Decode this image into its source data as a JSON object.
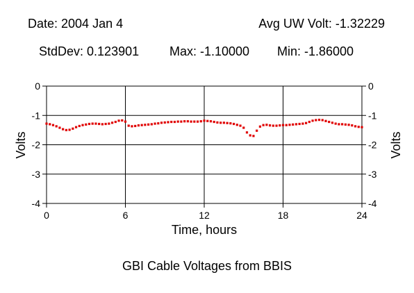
{
  "header": {
    "date": "Date: 2004 Jan 4",
    "avg": "Avg UW Volt: -1.32229",
    "stddev": "StdDev: 0.123901",
    "max": "Max: -1.10000",
    "min": "Min: -1.86000"
  },
  "caption": "GBI Cable Voltages from BBIS",
  "chart_data": {
    "type": "scatter",
    "xlabel": "Time, hours",
    "ylabel": "Volts",
    "xlim": [
      0,
      24
    ],
    "ylim": [
      -4,
      0
    ],
    "xticks": [
      0,
      6,
      12,
      18,
      24
    ],
    "yticks": [
      0,
      -1,
      -2,
      -3,
      -4
    ],
    "grid": true,
    "marker_color": "#e00000",
    "x": [
      0.0,
      0.25,
      0.5,
      0.75,
      1.0,
      1.25,
      1.5,
      1.75,
      2.0,
      2.25,
      2.5,
      2.75,
      3.0,
      3.25,
      3.5,
      3.75,
      4.0,
      4.25,
      4.5,
      4.75,
      5.0,
      5.25,
      5.5,
      5.75,
      6.0,
      6.25,
      6.5,
      6.75,
      7.0,
      7.25,
      7.5,
      7.75,
      8.0,
      8.25,
      8.5,
      8.75,
      9.0,
      9.25,
      9.5,
      9.75,
      10.0,
      10.25,
      10.5,
      10.75,
      11.0,
      11.25,
      11.5,
      11.75,
      12.0,
      12.25,
      12.5,
      12.75,
      13.0,
      13.25,
      13.5,
      13.75,
      14.0,
      14.25,
      14.5,
      14.75,
      15.0,
      15.25,
      15.5,
      15.75,
      16.0,
      16.25,
      16.5,
      16.75,
      17.0,
      17.25,
      17.5,
      17.75,
      18.0,
      18.25,
      18.5,
      18.75,
      19.0,
      19.25,
      19.5,
      19.75,
      20.0,
      20.25,
      20.5,
      20.75,
      21.0,
      21.25,
      21.5,
      21.75,
      22.0,
      22.25,
      22.5,
      22.75,
      23.0,
      23.25,
      23.5,
      23.75,
      24.0
    ],
    "y": [
      -1.28,
      -1.3,
      -1.33,
      -1.37,
      -1.42,
      -1.47,
      -1.5,
      -1.49,
      -1.45,
      -1.4,
      -1.36,
      -1.33,
      -1.31,
      -1.29,
      -1.28,
      -1.28,
      -1.29,
      -1.3,
      -1.29,
      -1.28,
      -1.25,
      -1.22,
      -1.18,
      -1.17,
      -1.21,
      -1.35,
      -1.37,
      -1.36,
      -1.34,
      -1.33,
      -1.32,
      -1.31,
      -1.3,
      -1.28,
      -1.27,
      -1.25,
      -1.24,
      -1.23,
      -1.22,
      -1.22,
      -1.21,
      -1.21,
      -1.2,
      -1.2,
      -1.21,
      -1.21,
      -1.21,
      -1.2,
      -1.18,
      -1.19,
      -1.2,
      -1.22,
      -1.24,
      -1.25,
      -1.25,
      -1.26,
      -1.27,
      -1.29,
      -1.32,
      -1.35,
      -1.42,
      -1.58,
      -1.68,
      -1.7,
      -1.52,
      -1.38,
      -1.33,
      -1.32,
      -1.34,
      -1.35,
      -1.35,
      -1.34,
      -1.33,
      -1.33,
      -1.32,
      -1.31,
      -1.3,
      -1.29,
      -1.28,
      -1.26,
      -1.22,
      -1.18,
      -1.16,
      -1.15,
      -1.16,
      -1.19,
      -1.22,
      -1.25,
      -1.28,
      -1.3,
      -1.3,
      -1.31,
      -1.32,
      -1.34,
      -1.37,
      -1.39,
      -1.4
    ]
  }
}
